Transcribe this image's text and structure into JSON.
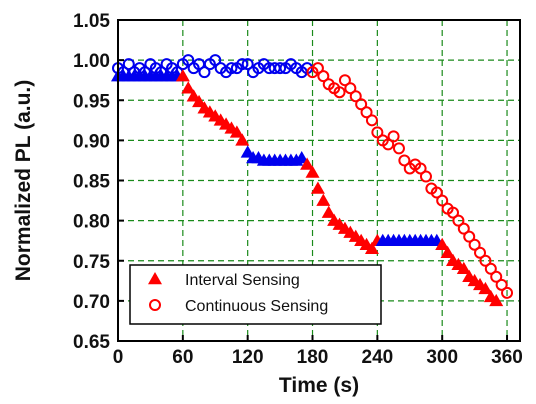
{
  "chart_data": {
    "type": "scatter",
    "title": "",
    "xlabel": "Time (s)",
    "ylabel": "Normalized PL (a.u.)",
    "xlim": [
      0,
      372
    ],
    "ylim": [
      0.65,
      1.05
    ],
    "x_ticks": [
      "0",
      "60",
      "120",
      "180",
      "240",
      "300",
      "360"
    ],
    "y_ticks": [
      "0.65",
      "0.70",
      "0.75",
      "0.80",
      "0.85",
      "0.90",
      "0.95",
      "1.00",
      "1.05"
    ],
    "grid": "dashed",
    "grid_color": "#1a8a1a",
    "legend_position": "bottom-left",
    "series": [
      {
        "name": "Interval Sensing",
        "marker": "filled-triangle",
        "color": "#ff0000",
        "segment_color": "#0000ee",
        "color_segments": [
          [
            0,
            0
          ],
          [
            1,
            1
          ],
          [
            0,
            0
          ],
          [
            1,
            1
          ],
          [
            0,
            0
          ],
          [
            1,
            1
          ],
          [
            0,
            0
          ],
          [
            1,
            1
          ]
        ],
        "x": [
          0,
          5,
          10,
          15,
          20,
          25,
          30,
          35,
          40,
          45,
          50,
          55,
          60,
          65,
          70,
          75,
          80,
          85,
          90,
          95,
          100,
          105,
          110,
          115,
          120,
          125,
          130,
          135,
          140,
          145,
          150,
          155,
          160,
          165,
          170,
          175,
          180,
          185,
          190,
          195,
          200,
          205,
          210,
          215,
          220,
          225,
          230,
          235,
          240,
          245,
          250,
          255,
          260,
          265,
          270,
          275,
          280,
          285,
          290,
          295,
          300,
          305,
          310,
          315,
          320,
          325,
          330,
          335,
          340,
          345,
          350
        ],
        "y": [
          0.98,
          0.98,
          0.98,
          0.98,
          0.98,
          0.98,
          0.98,
          0.98,
          0.98,
          0.98,
          0.98,
          0.98,
          0.98,
          0.965,
          0.955,
          0.948,
          0.94,
          0.935,
          0.93,
          0.925,
          0.92,
          0.915,
          0.91,
          0.9,
          0.885,
          0.878,
          0.878,
          0.875,
          0.875,
          0.875,
          0.875,
          0.875,
          0.875,
          0.875,
          0.878,
          0.87,
          0.86,
          0.84,
          0.825,
          0.81,
          0.8,
          0.795,
          0.79,
          0.785,
          0.78,
          0.775,
          0.77,
          0.765,
          0.775,
          0.775,
          0.775,
          0.775,
          0.775,
          0.775,
          0.775,
          0.775,
          0.775,
          0.775,
          0.775,
          0.775,
          0.77,
          0.76,
          0.75,
          0.745,
          0.74,
          0.73,
          0.725,
          0.72,
          0.715,
          0.705,
          0.7
        ]
      },
      {
        "name": "Continuous Sensing",
        "marker": "open-circle",
        "color": "#ff0000",
        "segment_color": "#0000ee",
        "color_segments": [
          [
            0,
            1
          ],
          [
            1,
            0
          ]
        ],
        "x": [
          0,
          5,
          10,
          15,
          20,
          25,
          30,
          35,
          40,
          45,
          50,
          55,
          60,
          65,
          70,
          75,
          80,
          85,
          90,
          95,
          100,
          105,
          110,
          115,
          120,
          125,
          130,
          135,
          140,
          145,
          150,
          155,
          160,
          165,
          170,
          175,
          180,
          185,
          190,
          195,
          200,
          205,
          210,
          215,
          220,
          225,
          230,
          235,
          240,
          245,
          250,
          255,
          260,
          265,
          270,
          275,
          280,
          285,
          290,
          295,
          300,
          305,
          310,
          315,
          320,
          325,
          330,
          335,
          340,
          345,
          350,
          355,
          360
        ],
        "y": [
          0.99,
          0.985,
          0.995,
          0.985,
          0.99,
          0.985,
          0.995,
          0.99,
          0.985,
          0.995,
          0.99,
          0.985,
          0.995,
          1.0,
          0.99,
          0.995,
          0.985,
          0.995,
          1.0,
          0.99,
          0.985,
          0.99,
          0.99,
          0.995,
          0.995,
          0.985,
          0.99,
          0.995,
          0.99,
          0.99,
          0.99,
          0.99,
          0.995,
          0.99,
          0.985,
          0.99,
          0.985,
          0.99,
          0.98,
          0.97,
          0.965,
          0.96,
          0.975,
          0.965,
          0.955,
          0.945,
          0.935,
          0.925,
          0.91,
          0.9,
          0.895,
          0.905,
          0.89,
          0.875,
          0.865,
          0.87,
          0.865,
          0.855,
          0.84,
          0.835,
          0.825,
          0.815,
          0.81,
          0.8,
          0.79,
          0.78,
          0.77,
          0.76,
          0.75,
          0.74,
          0.73,
          0.72,
          0.71
        ]
      }
    ]
  }
}
